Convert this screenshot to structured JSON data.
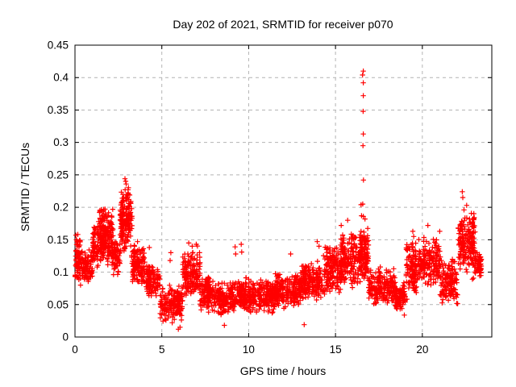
{
  "figure": {
    "title": "Day 202 of 2021, SRMTID for receiver p070"
  },
  "chart_data": {
    "type": "scatter",
    "title": "Day 202 of 2021, SRMTID for receiver p070",
    "xlabel": "GPS time / hours",
    "ylabel": "SRMTID / TECUs",
    "xlim": [
      0,
      24
    ],
    "ylim": [
      0,
      0.45
    ],
    "xticks": [
      "0",
      "5",
      "10",
      "15",
      "20"
    ],
    "xtick_values": [
      0,
      5,
      10,
      15,
      20
    ],
    "yticks": [
      "0",
      "0.05",
      "0.1",
      "0.15",
      "0.2",
      "0.25",
      "0.3",
      "0.35",
      "0.4",
      "0.45"
    ],
    "ytick_values": [
      0,
      0.05,
      0.1,
      0.15,
      0.2,
      0.25,
      0.3,
      0.35,
      0.4,
      0.45
    ],
    "grid": true,
    "legend": "none",
    "marker": "plus",
    "marker_color": "#ff0000",
    "grid_color": "#b4b4b4",
    "axis_color": "#000000",
    "background": "#ffffff",
    "features": {
      "baseline_band_TECU": [
        0.03,
        0.12
      ],
      "morning_peak": {
        "x_hours": 2.9,
        "y_TECU": 0.244
      },
      "midday_minimum": {
        "x_hours": 5.9,
        "y_TECU": 0.012
      },
      "spike_column": {
        "x_hours": 16.6,
        "y_max_TECU": 0.41
      },
      "evening_rise": {
        "x_hours": 22.3,
        "y_TECU": 0.224
      },
      "data_end_hours": 23.4
    },
    "bands_format": [
      "x_start_h",
      "x_end_h",
      "y_min_TECU",
      "y_max_TECU",
      "point_count"
    ],
    "bands": [
      [
        0.0,
        0.35,
        0.07,
        0.17,
        45
      ],
      [
        0.35,
        1.0,
        0.075,
        0.14,
        70
      ],
      [
        1.0,
        1.3,
        0.09,
        0.18,
        40
      ],
      [
        1.3,
        2.2,
        0.1,
        0.21,
        140
      ],
      [
        2.2,
        2.6,
        0.09,
        0.155,
        45
      ],
      [
        2.6,
        3.3,
        0.12,
        0.245,
        130
      ],
      [
        3.3,
        4.1,
        0.07,
        0.148,
        90
      ],
      [
        4.1,
        4.9,
        0.055,
        0.12,
        85
      ],
      [
        4.9,
        6.2,
        0.018,
        0.085,
        140
      ],
      [
        6.2,
        7.2,
        0.05,
        0.145,
        115
      ],
      [
        7.2,
        8.1,
        0.032,
        0.1,
        95
      ],
      [
        8.1,
        10.0,
        0.028,
        0.095,
        190
      ],
      [
        10.0,
        11.5,
        0.032,
        0.095,
        150
      ],
      [
        11.5,
        13.0,
        0.038,
        0.105,
        150
      ],
      [
        13.0,
        14.3,
        0.048,
        0.125,
        130
      ],
      [
        14.3,
        15.3,
        0.055,
        0.15,
        115
      ],
      [
        15.3,
        16.35,
        0.065,
        0.17,
        120
      ],
      [
        16.35,
        16.9,
        0.07,
        0.175,
        100
      ],
      [
        16.9,
        18.4,
        0.04,
        0.115,
        140
      ],
      [
        18.4,
        19.05,
        0.028,
        0.09,
        65
      ],
      [
        19.05,
        19.8,
        0.05,
        0.16,
        85
      ],
      [
        19.8,
        21.0,
        0.07,
        0.16,
        120
      ],
      [
        21.0,
        22.05,
        0.042,
        0.125,
        105
      ],
      [
        22.05,
        23.0,
        0.08,
        0.205,
        125
      ],
      [
        23.0,
        23.4,
        0.085,
        0.135,
        45
      ]
    ],
    "outliers": [
      [
        16.6,
        0.41
      ],
      [
        16.56,
        0.404
      ],
      [
        16.6,
        0.392
      ],
      [
        16.6,
        0.372
      ],
      [
        16.59,
        0.348
      ],
      [
        16.6,
        0.313
      ],
      [
        16.58,
        0.295
      ],
      [
        16.61,
        0.242
      ],
      [
        16.57,
        0.205
      ],
      [
        16.6,
        0.186
      ],
      [
        16.47,
        0.204
      ],
      [
        16.5,
        0.187
      ],
      [
        2.88,
        0.244
      ],
      [
        2.92,
        0.24
      ],
      [
        2.95,
        0.236
      ],
      [
        15.33,
        0.172
      ],
      [
        15.7,
        0.18
      ],
      [
        16.7,
        0.182
      ],
      [
        9.57,
        0.143
      ],
      [
        9.6,
        0.131
      ],
      [
        9.22,
        0.139
      ],
      [
        9.25,
        0.128
      ],
      [
        22.3,
        0.224
      ],
      [
        22.33,
        0.215
      ],
      [
        22.55,
        0.203
      ],
      [
        22.4,
        0.196
      ],
      [
        20.32,
        0.172
      ],
      [
        21.0,
        0.163
      ],
      [
        19.45,
        0.163
      ],
      [
        19.5,
        0.155
      ],
      [
        5.95,
        0.012
      ],
      [
        6.05,
        0.015
      ],
      [
        5.6,
        0.022
      ],
      [
        13.2,
        0.019
      ],
      [
        8.6,
        0.018
      ],
      [
        0.05,
        0.157
      ],
      [
        0.08,
        0.15
      ],
      [
        6.55,
        0.145
      ],
      [
        6.75,
        0.14
      ],
      [
        6.98,
        0.143
      ],
      [
        3.6,
        0.147
      ],
      [
        4.28,
        0.138
      ],
      [
        5.52,
        0.13
      ],
      [
        5.48,
        0.118
      ],
      [
        12.42,
        0.128
      ],
      [
        13.95,
        0.147
      ],
      [
        14.05,
        0.14
      ],
      [
        23.15,
        0.13
      ]
    ]
  }
}
